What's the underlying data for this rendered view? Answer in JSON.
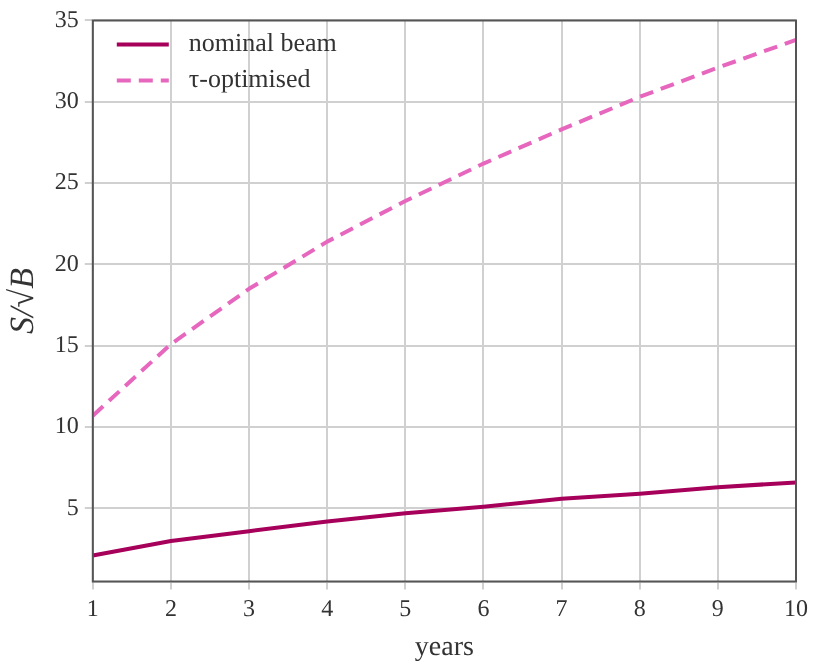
{
  "chart_data": {
    "type": "line",
    "xlabel": "years",
    "ylabel": "S/√B",
    "x": [
      1,
      2,
      3,
      4,
      5,
      6,
      7,
      8,
      9,
      10
    ],
    "series": [
      {
        "name": "nominal beam",
        "color": "#a6005a",
        "line_style": "solid",
        "values": [
          2.1,
          3.0,
          3.6,
          4.2,
          4.7,
          5.1,
          5.6,
          5.9,
          6.3,
          6.6
        ]
      },
      {
        "name": "τ-optimised",
        "color": "#e667bd",
        "line_style": "dashed",
        "values": [
          10.7,
          15.1,
          18.5,
          21.4,
          23.9,
          26.2,
          28.3,
          30.3,
          32.1,
          33.8
        ]
      }
    ],
    "xlim": [
      1,
      10
    ],
    "xticks": [
      1,
      2,
      3,
      4,
      5,
      6,
      7,
      8,
      9,
      10
    ],
    "ylim": [
      0.5,
      35
    ],
    "yticks": [
      5,
      10,
      15,
      20,
      25,
      30,
      35
    ],
    "grid": true,
    "legend": "top left",
    "marker": "none"
  }
}
